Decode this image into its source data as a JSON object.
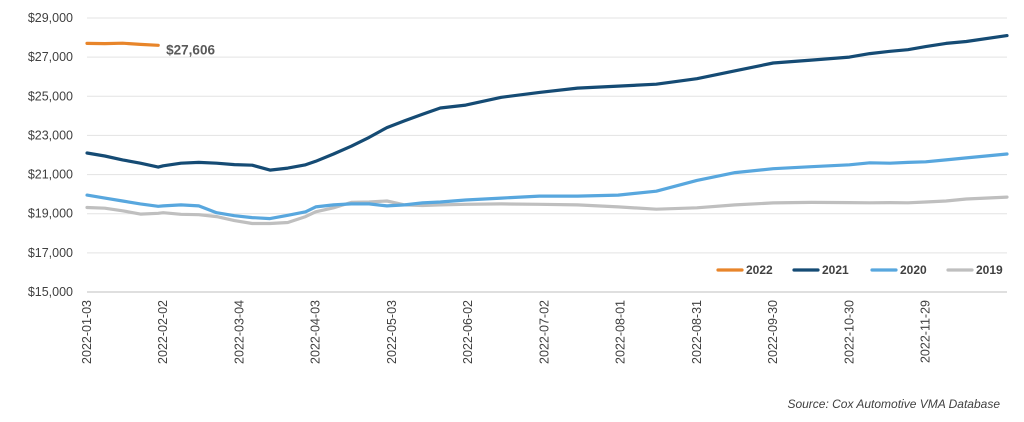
{
  "chart_data": {
    "type": "line",
    "ylim": [
      15000,
      29000
    ],
    "y_ticks": [
      "$29,000",
      "$27,000",
      "$25,000",
      "$23,000",
      "$21,000",
      "$19,000",
      "$17,000",
      "$15,000"
    ],
    "y_tick_values": [
      29000,
      27000,
      25000,
      23000,
      21000,
      19000,
      17000,
      15000
    ],
    "x_ticks": [
      "2022-01-03",
      "2022-02-02",
      "2022-03-04",
      "2022-04-03",
      "2022-05-03",
      "2022-06-02",
      "2022-07-02",
      "2022-08-01",
      "2022-08-31",
      "2022-09-30",
      "2022-10-30",
      "2022-11-29"
    ],
    "x_start": "2022-01-03",
    "x_end": "2022-12-31",
    "grid": "horizontal",
    "legend_position": "bottom-right",
    "annotation": {
      "text": "$27,606",
      "series": "2022"
    },
    "series": [
      {
        "name": "2022",
        "color": "#E8852A",
        "x": [
          "2022-01-03",
          "2022-01-10",
          "2022-01-17",
          "2022-01-24",
          "2022-01-31"
        ],
        "y": [
          27700,
          27690,
          27710,
          27650,
          27606
        ]
      },
      {
        "name": "2021",
        "color": "#154B74",
        "x": [
          "2022-01-03",
          "2022-01-10",
          "2022-01-17",
          "2022-01-24",
          "2022-01-31",
          "2022-02-02",
          "2022-02-09",
          "2022-02-16",
          "2022-02-23",
          "2022-03-02",
          "2022-03-09",
          "2022-03-16",
          "2022-03-23",
          "2022-03-30",
          "2022-04-03",
          "2022-04-10",
          "2022-04-17",
          "2022-04-24",
          "2022-05-01",
          "2022-05-08",
          "2022-05-15",
          "2022-05-22",
          "2022-06-01",
          "2022-06-15",
          "2022-06-30",
          "2022-07-15",
          "2022-07-31",
          "2022-08-15",
          "2022-08-31",
          "2022-09-15",
          "2022-09-30",
          "2022-10-15",
          "2022-10-30",
          "2022-11-07",
          "2022-11-15",
          "2022-11-22",
          "2022-11-29",
          "2022-12-07",
          "2022-12-15",
          "2022-12-31"
        ],
        "y": [
          22100,
          21950,
          21750,
          21580,
          21380,
          21450,
          21580,
          21620,
          21580,
          21510,
          21480,
          21230,
          21330,
          21500,
          21680,
          22050,
          22450,
          22900,
          23400,
          23750,
          24080,
          24400,
          24550,
          24950,
          25200,
          25420,
          25520,
          25620,
          25900,
          26300,
          26700,
          26850,
          27000,
          27180,
          27300,
          27380,
          27540,
          27700,
          27800,
          28100
        ]
      },
      {
        "name": "2020",
        "color": "#58A7DE",
        "x": [
          "2022-01-03",
          "2022-01-10",
          "2022-01-17",
          "2022-01-24",
          "2022-01-31",
          "2022-02-02",
          "2022-02-09",
          "2022-02-16",
          "2022-02-23",
          "2022-03-02",
          "2022-03-09",
          "2022-03-16",
          "2022-03-23",
          "2022-03-30",
          "2022-04-03",
          "2022-04-10",
          "2022-04-17",
          "2022-04-24",
          "2022-05-01",
          "2022-05-08",
          "2022-05-15",
          "2022-05-22",
          "2022-06-01",
          "2022-06-15",
          "2022-06-30",
          "2022-07-15",
          "2022-07-31",
          "2022-08-15",
          "2022-08-31",
          "2022-09-15",
          "2022-09-30",
          "2022-10-15",
          "2022-10-30",
          "2022-11-07",
          "2022-11-15",
          "2022-11-22",
          "2022-11-29",
          "2022-12-07",
          "2022-12-15",
          "2022-12-31"
        ],
        "y": [
          19950,
          19800,
          19650,
          19500,
          19380,
          19400,
          19450,
          19400,
          19050,
          18900,
          18800,
          18750,
          18920,
          19100,
          19350,
          19450,
          19500,
          19500,
          19400,
          19450,
          19550,
          19600,
          19700,
          19800,
          19900,
          19900,
          19950,
          20150,
          20700,
          21100,
          21300,
          21400,
          21500,
          21600,
          21580,
          21620,
          21650,
          21750,
          21850,
          22050
        ]
      },
      {
        "name": "2019",
        "color": "#BFBFBF",
        "x": [
          "2022-01-03",
          "2022-01-10",
          "2022-01-17",
          "2022-01-24",
          "2022-01-31",
          "2022-02-02",
          "2022-02-09",
          "2022-02-16",
          "2022-02-23",
          "2022-03-02",
          "2022-03-09",
          "2022-03-16",
          "2022-03-23",
          "2022-03-30",
          "2022-04-03",
          "2022-04-10",
          "2022-04-17",
          "2022-04-24",
          "2022-05-01",
          "2022-05-08",
          "2022-05-15",
          "2022-05-22",
          "2022-06-01",
          "2022-06-15",
          "2022-06-30",
          "2022-07-15",
          "2022-07-31",
          "2022-08-15",
          "2022-08-31",
          "2022-09-15",
          "2022-09-30",
          "2022-10-15",
          "2022-10-30",
          "2022-11-07",
          "2022-11-15",
          "2022-11-22",
          "2022-11-29",
          "2022-12-07",
          "2022-12-15",
          "2022-12-31"
        ],
        "y": [
          19320,
          19280,
          19150,
          18980,
          19020,
          19050,
          18970,
          18950,
          18850,
          18650,
          18500,
          18500,
          18550,
          18850,
          19100,
          19300,
          19580,
          19600,
          19650,
          19450,
          19420,
          19450,
          19480,
          19500,
          19480,
          19450,
          19350,
          19230,
          19300,
          19450,
          19550,
          19580,
          19570,
          19560,
          19570,
          19560,
          19600,
          19650,
          19750,
          19850
        ]
      }
    ]
  },
  "source": "Source:  Cox Automotive VMA Database"
}
